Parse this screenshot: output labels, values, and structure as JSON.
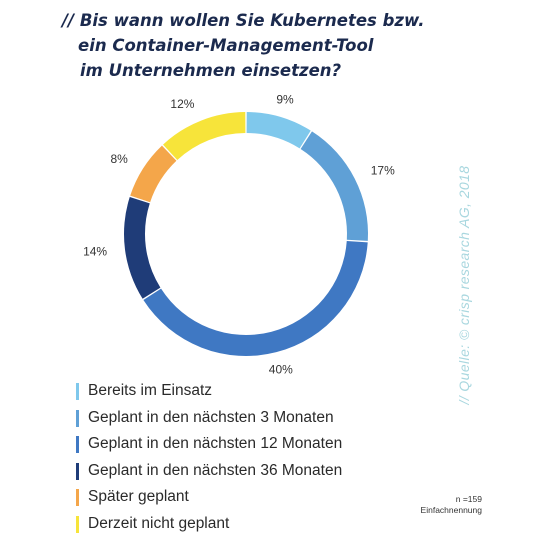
{
  "title": {
    "prefix": "//",
    "line1": "Bis wann wollen Sie Kubernetes bzw.",
    "line2": "ein Container-Management-Tool",
    "line3": "im Unternehmen einsetzen?"
  },
  "source": "// Quelle: © crisp research AG, 2018",
  "note": {
    "n": "n =159",
    "type": "Einfachnennung"
  },
  "chart_data": {
    "type": "donut",
    "unit": "%",
    "categories": [
      "Bereits im Einsatz",
      "Geplant in den nächsten 3 Monaten",
      "Geplant in den nächsten 12 Monaten",
      "Geplant in den nächsten 36 Monaten",
      "Später geplant",
      "Derzeit nicht geplant"
    ],
    "values": [
      9,
      17,
      40,
      14,
      8,
      12
    ],
    "labels": [
      "9%",
      "17%",
      "40%",
      "14%",
      "8%",
      "12%"
    ],
    "colors": [
      "#7fc8ec",
      "#5fa0d6",
      "#3f78c3",
      "#1f3c78",
      "#f4a64a",
      "#f7e43a"
    ],
    "legend_position": "bottom-left"
  }
}
